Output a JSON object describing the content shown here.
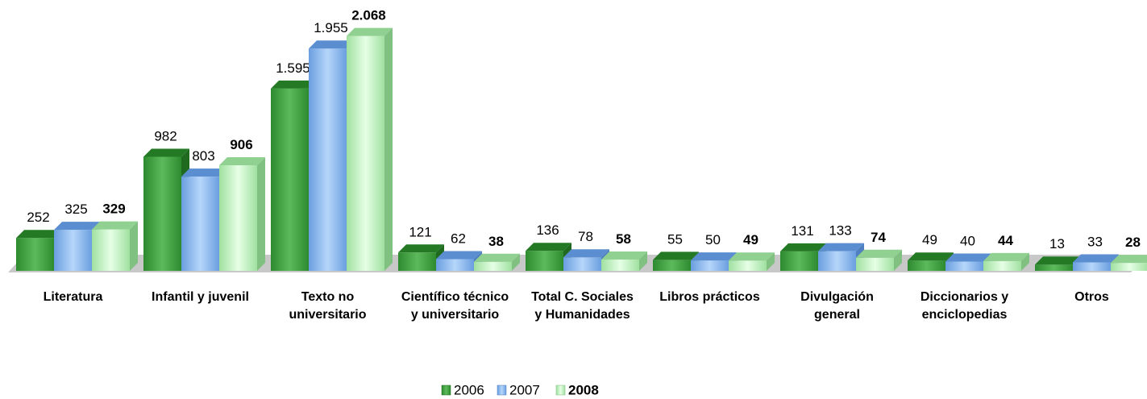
{
  "chart_data": {
    "type": "bar3d",
    "categories": [
      "Literatura",
      "Infantil y juvenil",
      "Texto no universitario",
      "Científico técnico y universitario",
      "Total C. Sociales y Humanidades",
      "Libros prácticos",
      "Divulgación general",
      "Diccionarios y enciclopedias",
      "Otros"
    ],
    "series": [
      {
        "name": "2006",
        "color": "#3c9c3c",
        "values": [
          252,
          982,
          1595,
          121,
          136,
          55,
          131,
          49,
          13
        ],
        "value_labels": [
          "252",
          "982",
          "1.595",
          "121",
          "136",
          "55",
          "131",
          "49",
          "13"
        ]
      },
      {
        "name": "2007",
        "color": "#8cb8ee",
        "values": [
          325,
          803,
          1955,
          62,
          78,
          50,
          133,
          40,
          33
        ],
        "value_labels": [
          "325",
          "803",
          "1.955",
          "62",
          "78",
          "50",
          "133",
          "40",
          "33"
        ]
      },
      {
        "name": "2008",
        "color": "#c4f2c4",
        "values": [
          329,
          906,
          2068,
          38,
          58,
          49,
          74,
          44,
          28
        ],
        "value_labels": [
          "329",
          "906",
          "2.068",
          "38",
          "58",
          "49",
          "74",
          "44",
          "28"
        ]
      }
    ]
  }
}
